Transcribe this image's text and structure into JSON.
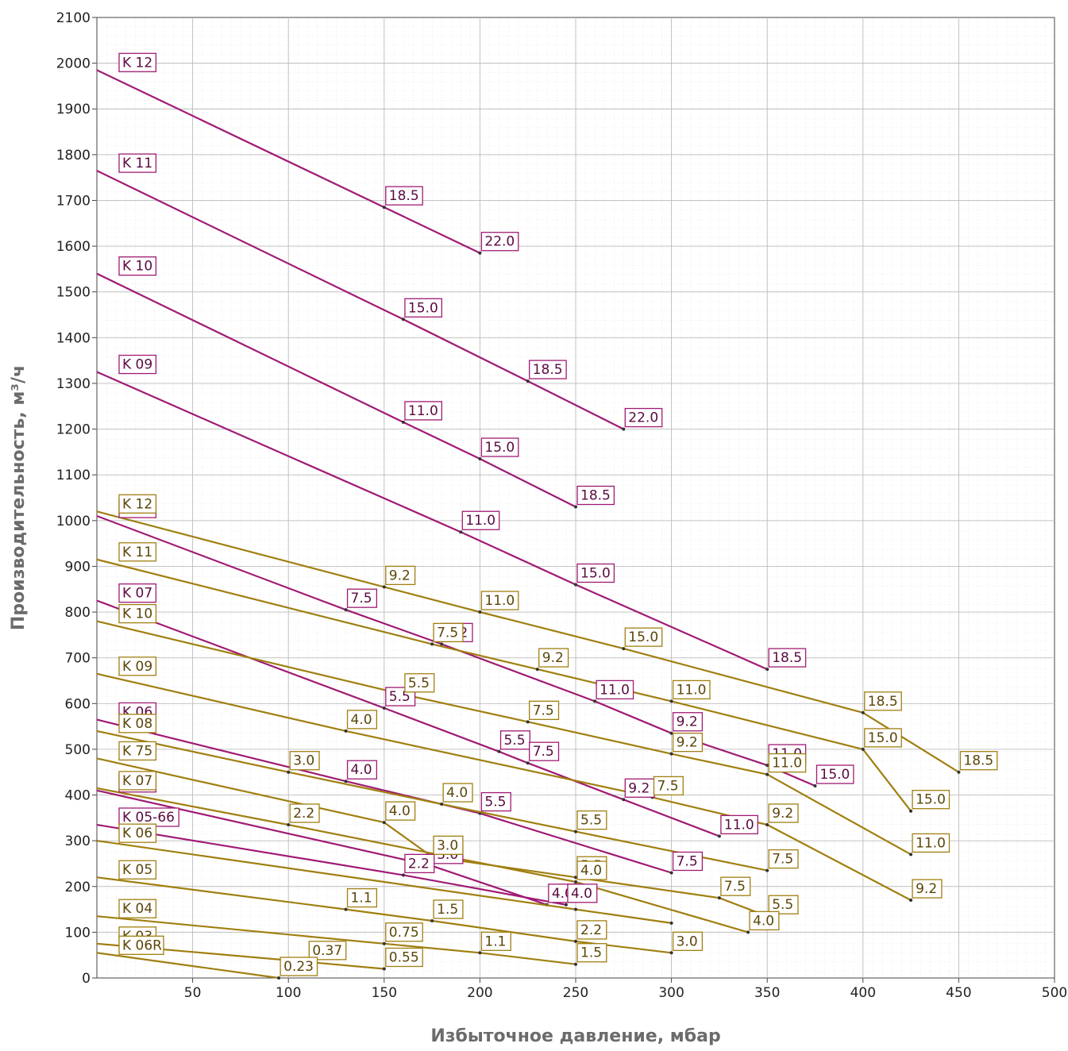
{
  "chart_data": {
    "type": "line",
    "xlabel": "Избыточное давление, мбар",
    "ylabel": "Производительность, м³/ч",
    "xlim": [
      0,
      500
    ],
    "ylim": [
      0,
      2100
    ],
    "x_ticks": [
      "50",
      "100",
      "150",
      "200",
      "250",
      "300",
      "350",
      "400",
      "450",
      "500"
    ],
    "y_ticks": [
      "0",
      "100",
      "200",
      "300",
      "400",
      "500",
      "600",
      "700",
      "800",
      "900",
      "1000",
      "1100",
      "1200",
      "1300",
      "1400",
      "1500",
      "1600",
      "1700",
      "1800",
      "1900",
      "2000",
      "2100"
    ],
    "grid": true,
    "colors": {
      "purple": "#a01a74",
      "gold": "#a07f10"
    },
    "series": [
      {
        "name": "K 12",
        "group": "purple",
        "points": [
          [
            0,
            1985
          ],
          [
            150,
            1685
          ],
          [
            200,
            1585
          ]
        ],
        "point_labels": [
          "",
          "18.5",
          "22.0"
        ]
      },
      {
        "name": "K 11",
        "group": "purple",
        "points": [
          [
            0,
            1765
          ],
          [
            160,
            1440
          ],
          [
            225,
            1305
          ],
          [
            275,
            1200
          ]
        ],
        "point_labels": [
          "",
          "15.0",
          "18.5",
          "22.0"
        ]
      },
      {
        "name": "K 10",
        "group": "purple",
        "points": [
          [
            0,
            1540
          ],
          [
            160,
            1215
          ],
          [
            200,
            1135
          ],
          [
            250,
            1030
          ]
        ],
        "point_labels": [
          "",
          "11.0",
          "15.0",
          "18.5"
        ]
      },
      {
        "name": "K 09",
        "group": "purple",
        "points": [
          [
            0,
            1325
          ],
          [
            190,
            975
          ],
          [
            250,
            860
          ],
          [
            350,
            675
          ]
        ],
        "point_labels": [
          "",
          "11.0",
          "15.0",
          "18.5"
        ]
      },
      {
        "name": "K 08",
        "group": "purple",
        "points": [
          [
            0,
            1010
          ],
          [
            130,
            805
          ],
          [
            180,
            730
          ],
          [
            260,
            605
          ],
          [
            300,
            535
          ],
          [
            350,
            465
          ],
          [
            375,
            420
          ]
        ],
        "point_labels": [
          "",
          "7.5",
          "9.2",
          "11.0",
          "9.2",
          "11.0",
          "15.0"
        ]
      },
      {
        "name": "K 07",
        "group": "purple",
        "points": [
          [
            0,
            825
          ],
          [
            150,
            590
          ],
          [
            210,
            495
          ],
          [
            225,
            470
          ],
          [
            275,
            390
          ],
          [
            325,
            310
          ]
        ],
        "point_labels": [
          "",
          "5.5",
          "5.5",
          "7.5",
          "9.2",
          "11.0"
        ]
      },
      {
        "name": "K 06",
        "group": "purple",
        "points": [
          [
            0,
            565
          ],
          [
            130,
            430
          ],
          [
            200,
            360
          ],
          [
            300,
            230
          ]
        ],
        "point_labels": [
          "",
          "4.0",
          "5.5",
          "7.5"
        ]
      },
      {
        "name": "K 05",
        "group": "purple",
        "points": [
          [
            0,
            410
          ],
          [
            175,
            245
          ],
          [
            235,
            160
          ]
        ],
        "point_labels": [
          "",
          "3.0",
          "4.0"
        ]
      },
      {
        "name": "K 05-66",
        "group": "purple",
        "points": [
          [
            0,
            335
          ],
          [
            160,
            225
          ],
          [
            245,
            160
          ]
        ],
        "point_labels": [
          "",
          "2.2",
          "4.0"
        ]
      },
      {
        "name": "K 12",
        "group": "gold",
        "points": [
          [
            0,
            1020
          ],
          [
            150,
            855
          ],
          [
            200,
            800
          ],
          [
            275,
            720
          ],
          [
            400,
            580
          ],
          [
            450,
            450
          ]
        ],
        "point_labels": [
          "",
          "9.2",
          "11.0",
          "15.0",
          "18.5",
          "18.5"
        ]
      },
      {
        "name": "K 11",
        "group": "gold",
        "points": [
          [
            0,
            915
          ],
          [
            175,
            730
          ],
          [
            230,
            675
          ],
          [
            300,
            605
          ],
          [
            400,
            500
          ],
          [
            425,
            365
          ]
        ],
        "point_labels": [
          "",
          "7.5",
          "9.2",
          "11.0",
          "15.0",
          "15.0"
        ]
      },
      {
        "name": "K 10",
        "group": "gold",
        "points": [
          [
            0,
            780
          ],
          [
            160,
            620
          ],
          [
            225,
            560
          ],
          [
            300,
            490
          ],
          [
            350,
            445
          ],
          [
            425,
            270
          ]
        ],
        "point_labels": [
          "",
          "5.5",
          "7.5",
          "9.2",
          "11.0",
          "11.0"
        ]
      },
      {
        "name": "K 09",
        "group": "gold",
        "points": [
          [
            0,
            665
          ],
          [
            130,
            540
          ],
          [
            290,
            395
          ],
          [
            350,
            335
          ],
          [
            425,
            170
          ]
        ],
        "point_labels": [
          "",
          "4.0",
          "7.5",
          "9.2",
          "9.2"
        ]
      },
      {
        "name": "K 08",
        "group": "gold",
        "points": [
          [
            0,
            540
          ],
          [
            100,
            450
          ],
          [
            180,
            380
          ],
          [
            250,
            320
          ],
          [
            350,
            235
          ]
        ],
        "point_labels": [
          "",
          "3.0",
          "4.0",
          "5.5",
          "7.5"
        ]
      },
      {
        "name": "K 75",
        "group": "gold",
        "points": [
          [
            0,
            480
          ],
          [
            150,
            340
          ],
          [
            175,
            265
          ],
          [
            250,
            220
          ],
          [
            325,
            175
          ],
          [
            350,
            135
          ]
        ],
        "point_labels": [
          "",
          "4.0",
          "3.0",
          "5.5",
          "7.5",
          "5.5"
        ]
      },
      {
        "name": "K 07",
        "group": "gold",
        "points": [
          [
            0,
            415
          ],
          [
            100,
            335
          ],
          [
            250,
            210
          ],
          [
            340,
            100
          ]
        ],
        "point_labels": [
          "",
          "2.2",
          "4.0",
          "4.0"
        ]
      },
      {
        "name": "K 06",
        "group": "gold",
        "points": [
          [
            0,
            300
          ],
          [
            250,
            150
          ],
          [
            300,
            120
          ]
        ],
        "point_labels": [
          "",
          "",
          ""
        ]
      },
      {
        "name": "K 05",
        "group": "gold",
        "points": [
          [
            0,
            220
          ],
          [
            130,
            150
          ],
          [
            175,
            125
          ],
          [
            250,
            80
          ],
          [
            300,
            55
          ]
        ],
        "point_labels": [
          "",
          "1.1",
          "1.5",
          "2.2",
          "3.0"
        ]
      },
      {
        "name": "K 04",
        "group": "gold",
        "points": [
          [
            0,
            135
          ],
          [
            150,
            75
          ],
          [
            200,
            55
          ],
          [
            250,
            30
          ]
        ],
        "point_labels": [
          "",
          "0.75",
          "1.1",
          "1.5"
        ]
      },
      {
        "name": "K 03",
        "group": "gold",
        "points": [
          [
            0,
            75
          ],
          [
            110,
            35
          ],
          [
            150,
            20
          ]
        ],
        "point_labels": [
          "",
          "0.37",
          "0.55"
        ]
      },
      {
        "name": "K 06R",
        "group": "gold",
        "points": [
          [
            0,
            55
          ],
          [
            95,
            0
          ]
        ],
        "point_labels": [
          "",
          "0.23"
        ]
      }
    ]
  }
}
